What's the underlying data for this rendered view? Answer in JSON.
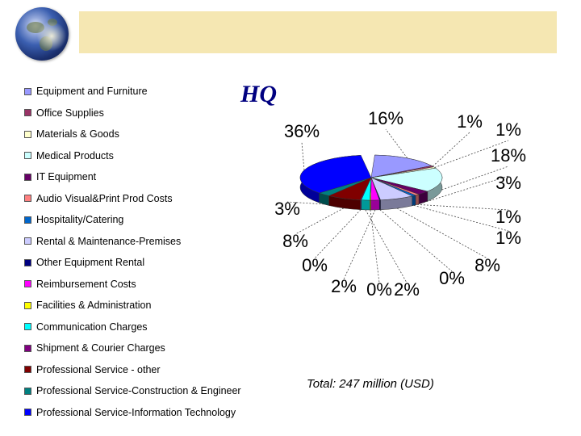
{
  "header": {
    "globe_icon": "globe-icon"
  },
  "chart_data": {
    "type": "pie",
    "title": "HQ",
    "subtitle": "Total: 247 million (USD)",
    "categories": [
      "Equipment and Furniture",
      "Office Supplies",
      "Materials & Goods",
      "Medical Products",
      "IT Equipment",
      "Audio Visual&Print Prod Costs",
      "Hospitality/Catering",
      "Rental & Maintenance-Premises",
      "Other Equipment Rental",
      "Reimbursement Costs",
      "Facilities & Administration",
      "Communication Charges",
      "Shipment & Courier Charges",
      "Professional Service - other",
      "Professional Service-Construction & Engineer",
      "Professional Service-Information Technology"
    ],
    "values": [
      16,
      1,
      1,
      18,
      3,
      1,
      1,
      8,
      0,
      2,
      0,
      2,
      0,
      8,
      3,
      36
    ],
    "labels": [
      "16%",
      "1%",
      "1%",
      "18%",
      "3%",
      "1%",
      "1%",
      "8%",
      "0%",
      "2%",
      "0%",
      "2%",
      "0%",
      "8%",
      "3%",
      "36%"
    ],
    "colors": [
      "#9999ff",
      "#993366",
      "#ffffcc",
      "#ccffff",
      "#660066",
      "#ff8080",
      "#0066cc",
      "#ccccff",
      "#000080",
      "#ff00ff",
      "#ffff00",
      "#00ffff",
      "#800080",
      "#800000",
      "#008080",
      "#0000ff"
    ],
    "legend_placement": "left"
  }
}
